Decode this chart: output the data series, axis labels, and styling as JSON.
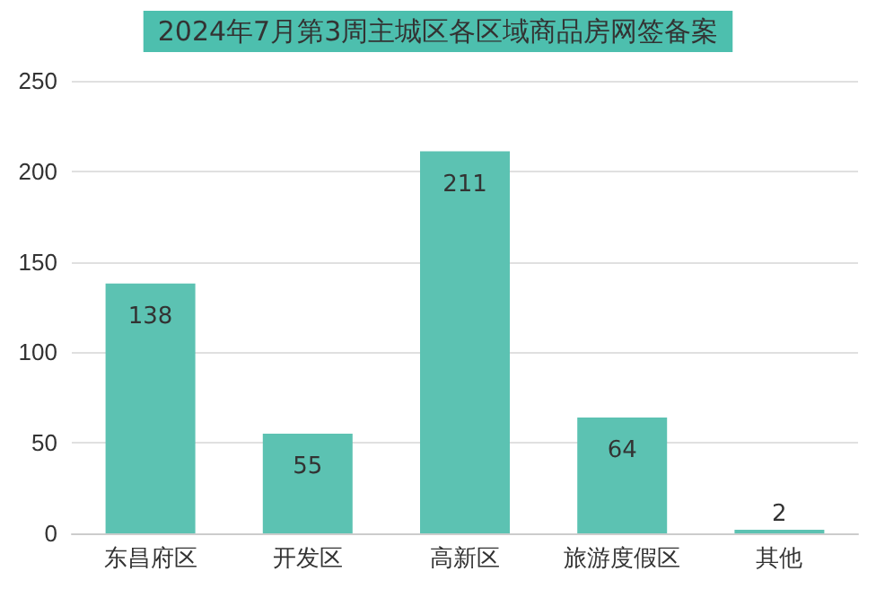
{
  "chart_data": {
    "type": "bar",
    "title": "2024年7月第3周主城区各区域商品房网签备案",
    "categories": [
      "东昌府区",
      "开发区",
      "高新区",
      "旅游度假区",
      "其他"
    ],
    "values": [
      138,
      55,
      211,
      64,
      2
    ],
    "color": "#5cc2b2",
    "ylim": [
      0,
      250
    ],
    "yticks": [
      0,
      50,
      100,
      150,
      200,
      250
    ],
    "grid": "y",
    "data_labels": true
  }
}
